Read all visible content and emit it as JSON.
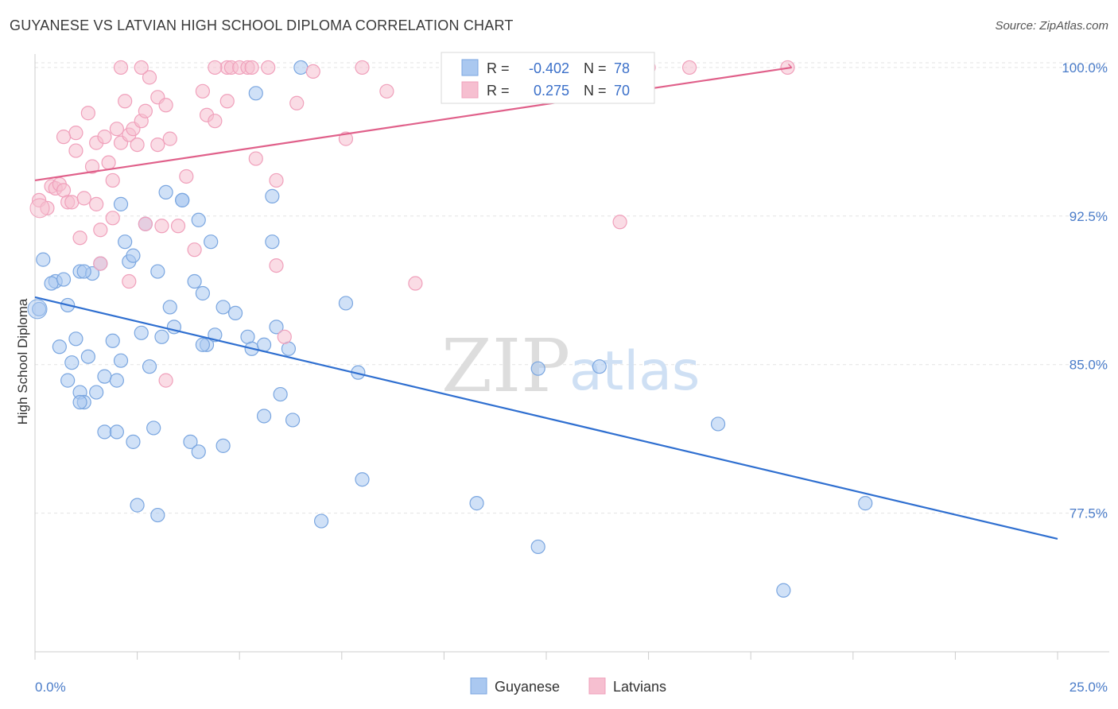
{
  "title": "GUYANESE VS LATVIAN HIGH SCHOOL DIPLOMA CORRELATION CHART",
  "source": "Source: ZipAtlas.com",
  "watermark": {
    "zip": "ZIP",
    "atlas": "atlas"
  },
  "legend": {
    "rows": [
      {
        "r_label": "R =",
        "r_value": "-0.402",
        "n_label": "N =",
        "n_value": "78"
      },
      {
        "r_label": "R =",
        "r_value": "0.275",
        "n_label": "N =",
        "n_value": "70"
      }
    ]
  },
  "chart_data": {
    "type": "scatter",
    "ylabel": "High School Diploma",
    "xlim": [
      0,
      25
    ],
    "ylim": [
      70.5,
      101
    ],
    "y_ticks": [
      {
        "value": 100,
        "label": "100.0%"
      },
      {
        "value": 92.5,
        "label": "92.5%"
      },
      {
        "value": 85,
        "label": "85.0%"
      },
      {
        "value": 77.5,
        "label": "77.5%"
      }
    ],
    "x_tick_labels": [
      {
        "value": 0,
        "label": "0.0%"
      },
      {
        "value": 25,
        "label": "25.0%"
      }
    ],
    "x_minor_ticks": [
      0,
      2.5,
      5,
      7.5,
      10,
      12.5,
      15,
      17.5,
      20,
      22.5,
      25
    ],
    "grid": true,
    "legend_position": "top-center",
    "series": [
      {
        "name": "Guyanese",
        "color": "#7aa6e0",
        "fill": "#aac8f0",
        "trend": {
          "x0": 0,
          "y0": 88.4,
          "x1": 25,
          "y1": 76.2,
          "color": "#2f6fd0"
        },
        "points": [
          [
            0.2,
            90.3
          ],
          [
            0.1,
            87.8
          ],
          [
            0.5,
            89.2
          ],
          [
            0.4,
            89.1
          ],
          [
            0.7,
            89.3
          ],
          [
            0.8,
            88.0
          ],
          [
            1.1,
            89.7
          ],
          [
            1.4,
            89.6
          ],
          [
            1.2,
            89.7
          ],
          [
            1.6,
            90.1
          ],
          [
            0.6,
            85.9
          ],
          [
            0.9,
            85.1
          ],
          [
            1.0,
            86.3
          ],
          [
            0.8,
            84.2
          ],
          [
            1.1,
            83.6
          ],
          [
            1.2,
            83.1
          ],
          [
            1.3,
            85.4
          ],
          [
            1.5,
            83.6
          ],
          [
            1.7,
            84.4
          ],
          [
            1.9,
            86.2
          ],
          [
            2.0,
            84.2
          ],
          [
            2.1,
            85.2
          ],
          [
            1.7,
            81.6
          ],
          [
            2.4,
            81.1
          ],
          [
            2.3,
            90.2
          ],
          [
            2.2,
            91.2
          ],
          [
            2.4,
            90.5
          ],
          [
            2.7,
            92.1
          ],
          [
            2.1,
            93.1
          ],
          [
            3.0,
            89.7
          ],
          [
            2.8,
            84.9
          ],
          [
            2.6,
            86.6
          ],
          [
            3.1,
            86.4
          ],
          [
            3.3,
            87.9
          ],
          [
            3.4,
            86.9
          ],
          [
            2.9,
            81.8
          ],
          [
            3.6,
            93.3
          ],
          [
            3.2,
            93.7
          ],
          [
            3.9,
            89.2
          ],
          [
            3.6,
            93.3
          ],
          [
            4.0,
            92.3
          ],
          [
            4.3,
            91.2
          ],
          [
            4.1,
            88.6
          ],
          [
            4.2,
            86.0
          ],
          [
            4.4,
            86.5
          ],
          [
            4.6,
            87.9
          ],
          [
            4.9,
            87.6
          ],
          [
            5.2,
            86.4
          ],
          [
            5.3,
            85.8
          ],
          [
            5.6,
            86.0
          ],
          [
            4.1,
            86.0
          ],
          [
            3.8,
            81.1
          ],
          [
            4.0,
            80.6
          ],
          [
            4.6,
            80.9
          ],
          [
            5.8,
            91.2
          ],
          [
            5.9,
            86.9
          ],
          [
            6.2,
            85.8
          ],
          [
            5.8,
            93.5
          ],
          [
            6.3,
            82.2
          ],
          [
            6.0,
            83.5
          ],
          [
            5.6,
            82.4
          ],
          [
            6.5,
            100.0
          ],
          [
            5.4,
            98.7
          ],
          [
            7.6,
            88.1
          ],
          [
            7.9,
            84.6
          ],
          [
            8.0,
            79.2
          ],
          [
            10.8,
            78.0
          ],
          [
            12.3,
            84.8
          ],
          [
            13.8,
            84.9
          ],
          [
            12.3,
            75.8
          ],
          [
            7.0,
            77.1
          ],
          [
            3.0,
            77.4
          ],
          [
            2.5,
            77.9
          ],
          [
            18.3,
            73.6
          ],
          [
            20.3,
            78.0
          ],
          [
            16.7,
            82.0
          ],
          [
            2.0,
            81.6
          ],
          [
            1.1,
            83.1
          ]
        ]
      },
      {
        "name": "Latvians",
        "color": "#f0a0bb",
        "fill": "#f6bfd0",
        "trend": {
          "x0": 0,
          "y0": 94.3,
          "x1": 18.5,
          "y1": 100.0,
          "dash_x1": 25,
          "dash_y1": 102.0,
          "color": "#e0608a"
        },
        "points": [
          [
            0.1,
            93.3
          ],
          [
            0.3,
            92.9
          ],
          [
            0.4,
            94.0
          ],
          [
            0.5,
            93.9
          ],
          [
            0.6,
            94.1
          ],
          [
            0.7,
            93.8
          ],
          [
            0.8,
            93.2
          ],
          [
            0.9,
            93.2
          ],
          [
            1.0,
            96.7
          ],
          [
            0.7,
            96.5
          ],
          [
            1.0,
            95.8
          ],
          [
            1.1,
            91.4
          ],
          [
            1.2,
            93.4
          ],
          [
            1.3,
            97.7
          ],
          [
            1.4,
            95.0
          ],
          [
            1.5,
            96.2
          ],
          [
            1.6,
            91.8
          ],
          [
            1.7,
            96.5
          ],
          [
            1.8,
            95.2
          ],
          [
            1.9,
            92.4
          ],
          [
            1.9,
            94.3
          ],
          [
            2.0,
            96.9
          ],
          [
            2.1,
            96.2
          ],
          [
            2.2,
            98.3
          ],
          [
            2.3,
            96.6
          ],
          [
            2.4,
            96.9
          ],
          [
            2.5,
            96.1
          ],
          [
            2.6,
            97.3
          ],
          [
            2.7,
            97.8
          ],
          [
            2.8,
            99.5
          ],
          [
            2.6,
            100.0
          ],
          [
            2.7,
            92.1
          ],
          [
            3.0,
            98.5
          ],
          [
            3.0,
            96.1
          ],
          [
            3.2,
            98.1
          ],
          [
            3.3,
            96.4
          ],
          [
            3.1,
            92.0
          ],
          [
            3.5,
            92.0
          ],
          [
            3.7,
            94.5
          ],
          [
            3.9,
            90.8
          ],
          [
            4.1,
            98.8
          ],
          [
            4.2,
            97.6
          ],
          [
            4.4,
            97.3
          ],
          [
            4.7,
            98.3
          ],
          [
            4.7,
            100.0
          ],
          [
            4.8,
            100.0
          ],
          [
            5.0,
            100.0
          ],
          [
            5.2,
            100.0
          ],
          [
            5.3,
            100.0
          ],
          [
            5.4,
            95.4
          ],
          [
            5.7,
            100.0
          ],
          [
            5.9,
            94.3
          ],
          [
            5.9,
            90.0
          ],
          [
            6.1,
            86.4
          ],
          [
            6.4,
            98.2
          ],
          [
            6.8,
            99.8
          ],
          [
            7.6,
            96.4
          ],
          [
            8.0,
            100.0
          ],
          [
            8.6,
            98.8
          ],
          [
            9.3,
            89.1
          ],
          [
            15.0,
            100.0
          ],
          [
            16.0,
            100.0
          ],
          [
            18.4,
            100.0
          ],
          [
            14.3,
            92.2
          ],
          [
            3.2,
            84.2
          ],
          [
            2.3,
            89.2
          ],
          [
            1.6,
            90.1
          ],
          [
            2.1,
            100.0
          ],
          [
            1.5,
            93.1
          ],
          [
            4.4,
            100.0
          ]
        ]
      }
    ]
  },
  "bottom_legend": [
    {
      "label": "Guyanese"
    },
    {
      "label": "Latvians"
    }
  ]
}
